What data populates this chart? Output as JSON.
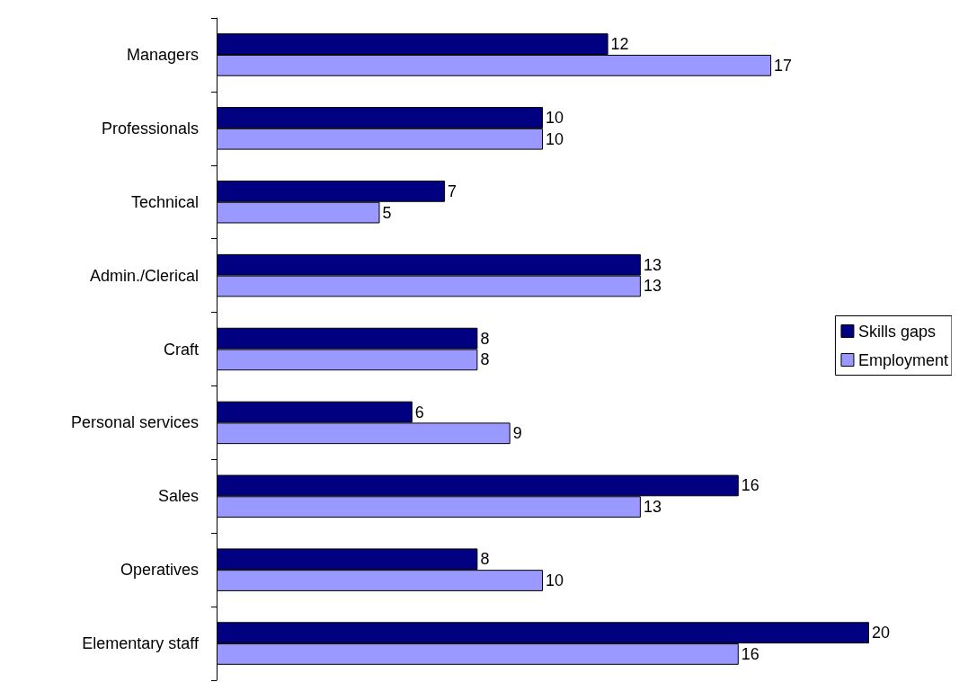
{
  "chart_data": {
    "type": "bar",
    "orientation": "horizontal",
    "categories": [
      "Managers",
      "Professionals",
      "Technical",
      "Admin./Clerical",
      "Craft",
      "Personal services",
      "Sales",
      "Operatives",
      "Elementary staff"
    ],
    "series": [
      {
        "name": "Skills gaps",
        "color": "#000080",
        "values": [
          12,
          10,
          7,
          13,
          8,
          6,
          16,
          8,
          20
        ]
      },
      {
        "name": "Employment",
        "color": "#9999ff",
        "values": [
          17,
          10,
          5,
          13,
          8,
          9,
          13,
          10,
          16
        ]
      }
    ],
    "data_labels": true,
    "legend": "right"
  }
}
